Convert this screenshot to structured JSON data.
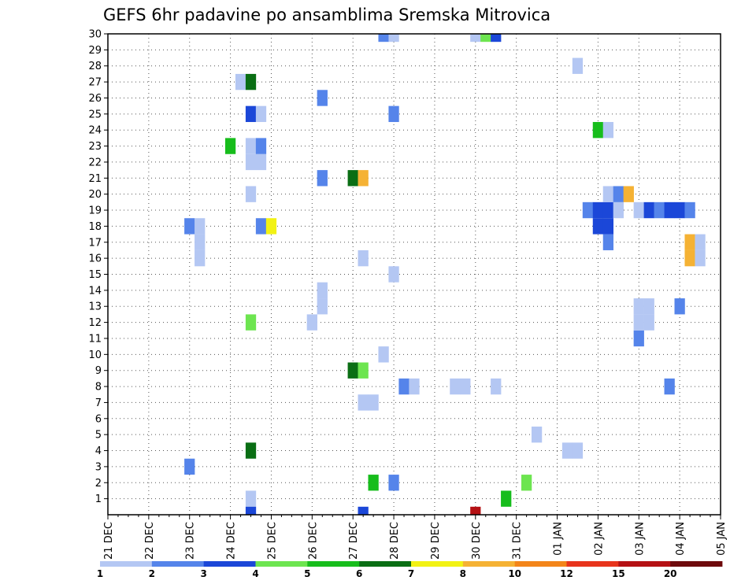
{
  "chart_data": {
    "type": "heatmap",
    "title": "GEFS 6hr padavine po ansamblima Sremska Mitrovica",
    "xlabel": "",
    "ylabel": "",
    "x_tick_labels": [
      "21 DEC",
      "22 DEC",
      "23 DEC",
      "24 DEC",
      "25 DEC",
      "26 DEC",
      "27 DEC",
      "28 DEC",
      "29 DEC",
      "30 DEC",
      "31 DEC",
      "01 JAN",
      "02 JAN",
      "03 JAN",
      "04 JAN",
      "05 JAN"
    ],
    "y_tick_labels": [
      "1",
      "2",
      "3",
      "4",
      "5",
      "6",
      "7",
      "8",
      "9",
      "10",
      "11",
      "12",
      "13",
      "14",
      "15",
      "16",
      "17",
      "18",
      "19",
      "20",
      "21",
      "22",
      "23",
      "24",
      "25",
      "26",
      "27",
      "28",
      "29",
      "30"
    ],
    "x_unit": "6-hour step from 21 DEC 00Z",
    "ylim": [
      0,
      30
    ],
    "grid": true,
    "legend": {
      "position": "bottom",
      "labels": [
        "1",
        "2",
        "3",
        "4",
        "5",
        "6",
        "7",
        "8",
        "10",
        "12",
        "15",
        "20"
      ],
      "colors": [
        "#b4c7f3",
        "#5584ea",
        "#1b47d8",
        "#6de550",
        "#17bd1c",
        "#0a6e14",
        "#f2f214",
        "#f5b234",
        "#f38519",
        "#e8341c",
        "#b51114",
        "#6e0a0c"
      ]
    },
    "cells": [
      {
        "t": 14,
        "m": 1,
        "c": 1
      },
      {
        "t": 39,
        "m": 1,
        "c": 5
      },
      {
        "t": 26,
        "m": 2,
        "c": 5
      },
      {
        "t": 28,
        "m": 2,
        "c": 2
      },
      {
        "t": 41,
        "m": 2,
        "c": 4
      },
      {
        "t": 8,
        "m": 3,
        "c": 2
      },
      {
        "t": 14,
        "m": 4,
        "c": 6
      },
      {
        "t": 45,
        "m": 4,
        "c": 1
      },
      {
        "t": 46,
        "m": 4,
        "c": 1
      },
      {
        "t": 42,
        "m": 5,
        "c": 1
      },
      {
        "t": 25,
        "m": 7,
        "c": 1
      },
      {
        "t": 26,
        "m": 7,
        "c": 1
      },
      {
        "t": 29,
        "m": 8,
        "c": 2
      },
      {
        "t": 30,
        "m": 8,
        "c": 1
      },
      {
        "t": 34,
        "m": 8,
        "c": 1
      },
      {
        "t": 35,
        "m": 8,
        "c": 1
      },
      {
        "t": 38,
        "m": 8,
        "c": 1
      },
      {
        "t": 55,
        "m": 8,
        "c": 2
      },
      {
        "t": 24,
        "m": 9,
        "c": 6
      },
      {
        "t": 25,
        "m": 9,
        "c": 4
      },
      {
        "t": 27,
        "m": 10,
        "c": 1
      },
      {
        "t": 52,
        "m": 11,
        "c": 2
      },
      {
        "t": 14,
        "m": 12,
        "c": 4
      },
      {
        "t": 20,
        "m": 12,
        "c": 1
      },
      {
        "t": 52,
        "m": 12,
        "c": 1
      },
      {
        "t": 53,
        "m": 12,
        "c": 1
      },
      {
        "t": 21,
        "m": 13,
        "c": 1
      },
      {
        "t": 52,
        "m": 13,
        "c": 1
      },
      {
        "t": 53,
        "m": 13,
        "c": 1
      },
      {
        "t": 56,
        "m": 13,
        "c": 2
      },
      {
        "t": 21,
        "m": 14,
        "c": 1
      },
      {
        "t": 28,
        "m": 15,
        "c": 1
      },
      {
        "t": 9,
        "m": 16,
        "c": 1
      },
      {
        "t": 25,
        "m": 16,
        "c": 1
      },
      {
        "t": 57,
        "m": 16,
        "c": 8
      },
      {
        "t": 58,
        "m": 16,
        "c": 1
      },
      {
        "t": 9,
        "m": 17,
        "c": 1
      },
      {
        "t": 49,
        "m": 17,
        "c": 2
      },
      {
        "t": 57,
        "m": 17,
        "c": 8
      },
      {
        "t": 58,
        "m": 17,
        "c": 1
      },
      {
        "t": 8,
        "m": 18,
        "c": 2
      },
      {
        "t": 9,
        "m": 18,
        "c": 1
      },
      {
        "t": 15,
        "m": 18,
        "c": 2
      },
      {
        "t": 16,
        "m": 18,
        "c": 7
      },
      {
        "t": 48,
        "m": 18,
        "c": 3
      },
      {
        "t": 49,
        "m": 18,
        "c": 3
      },
      {
        "t": 47,
        "m": 19,
        "c": 2
      },
      {
        "t": 48,
        "m": 19,
        "c": 3
      },
      {
        "t": 49,
        "m": 19,
        "c": 3
      },
      {
        "t": 50,
        "m": 19,
        "c": 1
      },
      {
        "t": 52,
        "m": 19,
        "c": 1
      },
      {
        "t": 53,
        "m": 19,
        "c": 3
      },
      {
        "t": 54,
        "m": 19,
        "c": 2
      },
      {
        "t": 55,
        "m": 19,
        "c": 3
      },
      {
        "t": 56,
        "m": 19,
        "c": 3
      },
      {
        "t": 57,
        "m": 19,
        "c": 2
      },
      {
        "t": 14,
        "m": 20,
        "c": 1
      },
      {
        "t": 49,
        "m": 20,
        "c": 1
      },
      {
        "t": 50,
        "m": 20,
        "c": 2
      },
      {
        "t": 51,
        "m": 20,
        "c": 8
      },
      {
        "t": 21,
        "m": 21,
        "c": 2
      },
      {
        "t": 24,
        "m": 21,
        "c": 6
      },
      {
        "t": 25,
        "m": 21,
        "c": 8
      },
      {
        "t": 14,
        "m": 22,
        "c": 1
      },
      {
        "t": 15,
        "m": 22,
        "c": 1
      },
      {
        "t": 12,
        "m": 23,
        "c": 5
      },
      {
        "t": 14,
        "m": 23,
        "c": 1
      },
      {
        "t": 15,
        "m": 23,
        "c": 2
      },
      {
        "t": 48,
        "m": 24,
        "c": 5
      },
      {
        "t": 49,
        "m": 24,
        "c": 1
      },
      {
        "t": 14,
        "m": 25,
        "c": 3
      },
      {
        "t": 15,
        "m": 25,
        "c": 1
      },
      {
        "t": 28,
        "m": 25,
        "c": 2
      },
      {
        "t": 21,
        "m": 26,
        "c": 2
      },
      {
        "t": 13,
        "m": 27,
        "c": 1
      },
      {
        "t": 14,
        "m": 27,
        "c": 6
      },
      {
        "t": 46,
        "m": 28,
        "c": 1
      },
      {
        "t": 27,
        "m": 30,
        "c": 2
      },
      {
        "t": 28,
        "m": 30,
        "c": 1
      },
      {
        "t": 36,
        "m": 30,
        "c": 1
      },
      {
        "t": 37,
        "m": 30,
        "c": 4
      },
      {
        "t": 38,
        "m": 30,
        "c": 3
      },
      {
        "t": 14,
        "m": 0,
        "c": 3
      },
      {
        "t": 25,
        "m": 0,
        "c": 3
      },
      {
        "t": 36,
        "m": 0,
        "c": 11
      }
    ]
  }
}
